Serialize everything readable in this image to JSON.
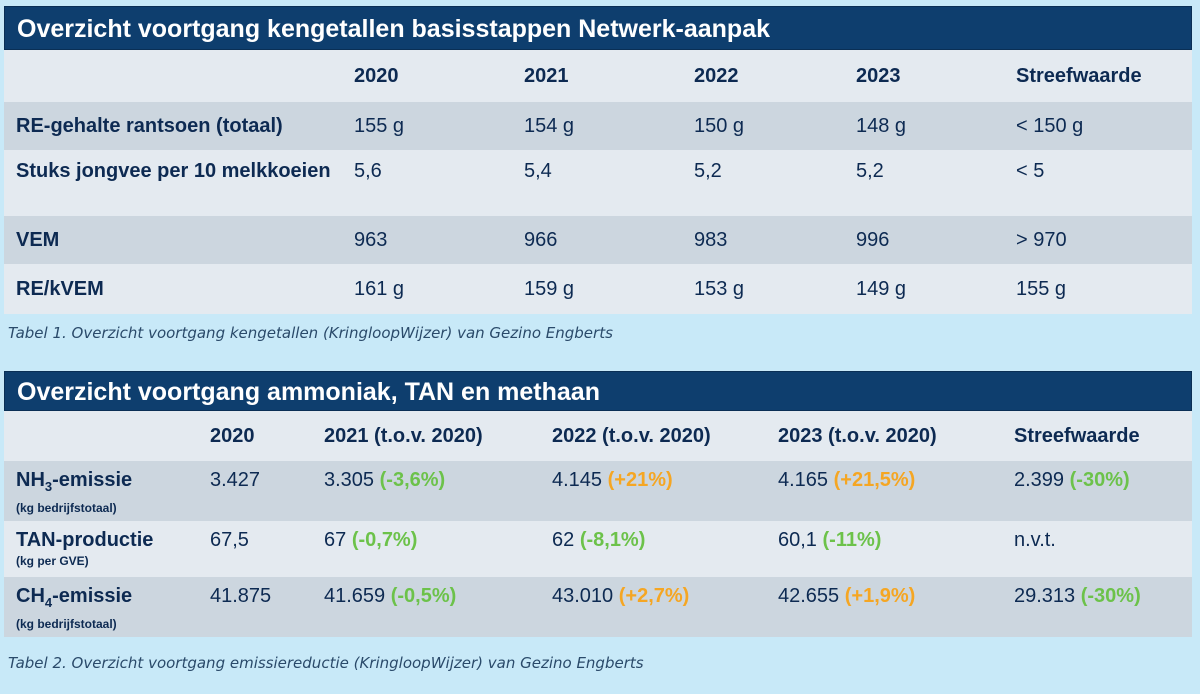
{
  "table1": {
    "title": "Overzicht voortgang kengetallen basisstappen Netwerk-aanpak",
    "headers": [
      "",
      "2020",
      "2021",
      "2022",
      "2023",
      "Streefwaarde"
    ],
    "rows": [
      {
        "label": "RE-gehalte rantsoen (totaal)",
        "values": [
          "155 g",
          "154 g",
          "150 g",
          "148 g",
          "< 150 g"
        ]
      },
      {
        "label": "Stuks jongvee per 10 melkkoeien",
        "values": [
          "5,6",
          "5,4",
          "5,2",
          "5,2",
          "< 5"
        ]
      },
      {
        "label": "VEM",
        "values": [
          "963",
          "966",
          "983",
          "996",
          "> 970"
        ]
      },
      {
        "label": "RE/kVEM",
        "values": [
          "161 g",
          "159 g",
          "153 g",
          "149 g",
          "155 g"
        ]
      }
    ],
    "caption": "Tabel 1. Overzicht voortgang kengetallen (KringloopWijzer) van Gezino Engberts"
  },
  "table2": {
    "title": "Overzicht voortgang ammoniak, TAN en methaan",
    "headers": [
      "",
      "2020",
      "2021 (t.o.v. 2020)",
      "2022 (t.o.v. 2020)",
      "2023 (t.o.v. 2020)",
      "Streefwaarde"
    ],
    "rows": [
      {
        "label_pre": "NH",
        "label_sub": "3",
        "label_post": "-emissie",
        "unit": "(kg bedrijfstotaal)",
        "v2020": "3.427",
        "v2021": "3.305",
        "d2021": "(-3,6%)",
        "v2022": "4.145",
        "d2022": "(+21%)",
        "v2023": "4.165",
        "d2023": "(+21,5%)",
        "target": "2.399",
        "dtarget": "(-30%)"
      },
      {
        "label_pre": "TAN-productie",
        "label_sub": "",
        "label_post": "",
        "unit": "(kg per GVE)",
        "v2020": "67,5",
        "v2021": "67",
        "d2021": "(-0,7%)",
        "v2022": "62",
        "d2022": "(-8,1%)",
        "v2023": "60,1",
        "d2023": "(-11%)",
        "target": "n.v.t.",
        "dtarget": ""
      },
      {
        "label_pre": "CH",
        "label_sub": "4",
        "label_post": "-emissie",
        "unit": "(kg bedrijfstotaal)",
        "v2020": "41.875",
        "v2021": "41.659",
        "d2021": "(-0,5%)",
        "v2022": "43.010",
        "d2022": "(+2,7%)",
        "v2023": "42.655",
        "d2023": "(+1,9%)",
        "target": "29.313",
        "dtarget": "(-30%)"
      }
    ],
    "caption": "Tabel 2. Overzicht voortgang emissiereductie (KringloopWijzer) van Gezino Engberts"
  },
  "colors": {
    "title_bg": "#0e3e6e",
    "page_bg": "#c8e9f8",
    "increase": "#f5a623",
    "decrease": "#6cc24a"
  }
}
